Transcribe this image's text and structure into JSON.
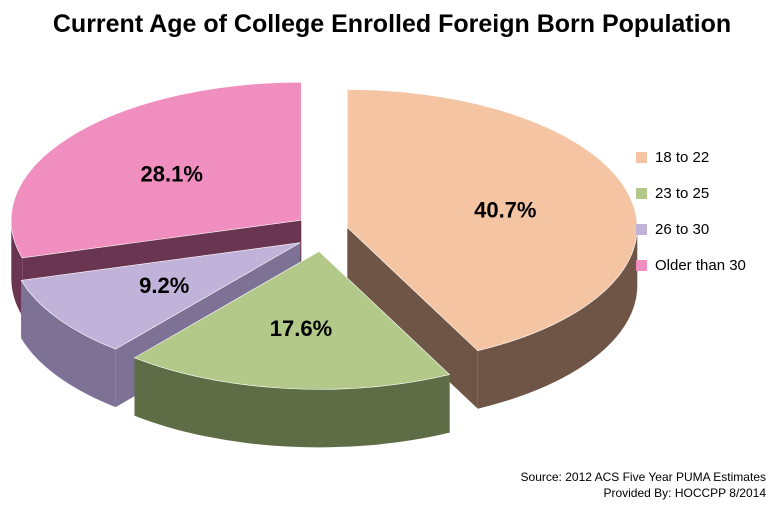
{
  "chart_data": {
    "type": "pie",
    "title": "Current Age of College Enrolled Foreign Born Population",
    "slices": [
      {
        "label": "18 to 22",
        "value": 40.7,
        "display": "40.7%",
        "color": "#f5c5a3",
        "side_color": "#6e5545"
      },
      {
        "label": "23 to 25",
        "value": 17.6,
        "display": "17.6%",
        "color": "#b3c98a",
        "side_color": "#5e6d45"
      },
      {
        "label": "26 to 30",
        "value": 9.2,
        "display": "9.2%",
        "color": "#c0b2d8",
        "side_color": "#7d7296"
      },
      {
        "label": "Older than 30",
        "value": 28.1,
        "display": "28.1%",
        "color": "#f18ec0",
        "side_color": "#6a3550"
      }
    ],
    "legend_position": "right",
    "exploded": true,
    "three_d": true
  },
  "source": {
    "line1": "Source: 2012 ACS Five Year PUMA Estimates",
    "line2": "Provided By: HOCCPP 8/2014"
  }
}
